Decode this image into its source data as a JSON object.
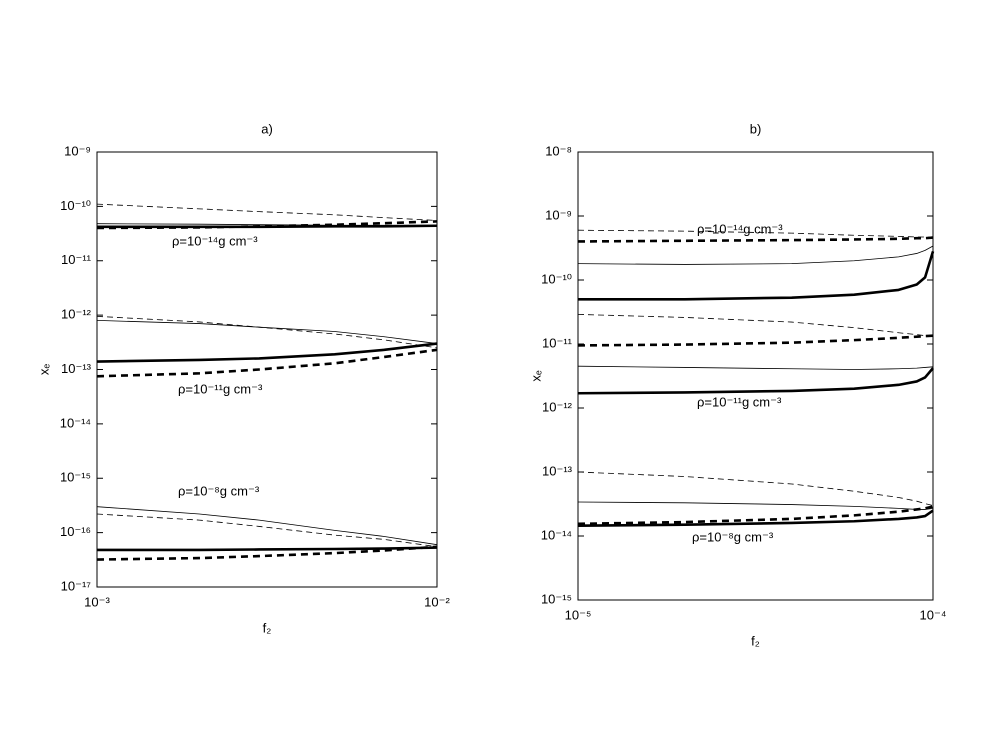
{
  "chart_data": [
    {
      "type": "line",
      "title": "a)",
      "x_label": "f₂",
      "y_label": "xₑ",
      "log_x": true,
      "log_y": true,
      "xlim": [
        0.001,
        0.01
      ],
      "ylim": [
        1e-17,
        1e-09
      ],
      "xticks": [
        {
          "value": 0.001,
          "label": "10⁻³"
        },
        {
          "value": 0.01,
          "label": "10⁻²"
        }
      ],
      "yticks": [
        {
          "value": 1e-17,
          "label": "10⁻¹⁷"
        },
        {
          "value": 1e-16,
          "label": "10⁻¹⁶"
        },
        {
          "value": 1e-15,
          "label": "10⁻¹⁵"
        },
        {
          "value": 1e-14,
          "label": "10⁻¹⁴"
        },
        {
          "value": 1e-13,
          "label": "10⁻¹³"
        },
        {
          "value": 1e-12,
          "label": "10⁻¹²"
        },
        {
          "value": 1e-11,
          "label": "10⁻¹¹"
        },
        {
          "value": 1e-10,
          "label": "10⁻¹⁰"
        },
        {
          "value": 1e-09,
          "label": "10⁻⁹"
        }
      ],
      "annotations": [
        "ρ=10⁻¹⁴g cm⁻³",
        "ρ=10⁻¹¹g cm⁻³",
        "ρ=10⁻⁸g cm⁻³"
      ],
      "x": [
        0.001,
        0.002,
        0.003,
        0.005,
        0.007,
        0.01
      ],
      "series": [
        {
          "color": "#000000",
          "width": 0.8,
          "dashed": true,
          "values": [
            1.1e-10,
            9e-11,
            8e-11,
            7e-11,
            6.2e-11,
            5.5e-11
          ]
        },
        {
          "color": "#000000",
          "width": 0.8,
          "dashed": false,
          "values": [
            4.8e-11,
            4.7e-11,
            4.6e-11,
            4.5e-11,
            4.5e-11,
            4.5e-11
          ]
        },
        {
          "color": "#000000",
          "width": 2.6,
          "dashed": false,
          "values": [
            4.2e-11,
            4.2e-11,
            4.2e-11,
            4.3e-11,
            4.3e-11,
            4.4e-11
          ]
        },
        {
          "color": "#000000",
          "width": 2.6,
          "dashed": true,
          "values": [
            4e-11,
            4.1e-11,
            4.3e-11,
            4.6e-11,
            4.9e-11,
            5.3e-11
          ]
        },
        {
          "color": "#000000",
          "width": 0.8,
          "dashed": true,
          "values": [
            9.5e-13,
            7.5e-13,
            6e-13,
            4.5e-13,
            3.5e-13,
            2.5e-13
          ]
        },
        {
          "color": "#000000",
          "width": 0.8,
          "dashed": false,
          "values": [
            8e-13,
            7e-13,
            6e-13,
            5e-13,
            4e-13,
            3e-13
          ]
        },
        {
          "color": "#000000",
          "width": 2.6,
          "dashed": false,
          "values": [
            1.4e-13,
            1.5e-13,
            1.6e-13,
            1.9e-13,
            2.3e-13,
            3e-13
          ]
        },
        {
          "color": "#000000",
          "width": 2.6,
          "dashed": true,
          "values": [
            7.5e-14,
            8.5e-14,
            1e-13,
            1.3e-13,
            1.7e-13,
            2.3e-13
          ]
        },
        {
          "color": "#000000",
          "width": 0.8,
          "dashed": false,
          "values": [
            3e-16,
            2.2e-16,
            1.7e-16,
            1.1e-16,
            8.5e-17,
            6e-17
          ]
        },
        {
          "color": "#000000",
          "width": 0.8,
          "dashed": true,
          "values": [
            2.2e-16,
            1.7e-16,
            1.3e-16,
            9e-17,
            7.5e-17,
            5.5e-17
          ]
        },
        {
          "color": "#000000",
          "width": 2.6,
          "dashed": false,
          "values": [
            4.8e-17,
            4.8e-17,
            4.9e-17,
            5e-17,
            5.1e-17,
            5.3e-17
          ]
        },
        {
          "color": "#000000",
          "width": 2.6,
          "dashed": true,
          "values": [
            3.2e-17,
            3.4e-17,
            3.7e-17,
            4.2e-17,
            4.7e-17,
            5.5e-17
          ]
        }
      ]
    },
    {
      "type": "line",
      "title": "b)",
      "x_label": "f₂",
      "y_label": "xₑ",
      "log_x": true,
      "log_y": true,
      "xlim": [
        1e-05,
        0.0001
      ],
      "ylim": [
        1e-15,
        1e-08
      ],
      "xticks": [
        {
          "value": 1e-05,
          "label": "10⁻⁵"
        },
        {
          "value": 0.0001,
          "label": "10⁻⁴"
        }
      ],
      "yticks": [
        {
          "value": 1e-15,
          "label": "10⁻¹⁵"
        },
        {
          "value": 1e-14,
          "label": "10⁻¹⁴"
        },
        {
          "value": 1e-13,
          "label": "10⁻¹³"
        },
        {
          "value": 1e-12,
          "label": "10⁻¹²"
        },
        {
          "value": 1e-11,
          "label": "10⁻¹¹"
        },
        {
          "value": 1e-10,
          "label": "10⁻¹⁰"
        },
        {
          "value": 1e-09,
          "label": "10⁻⁹"
        },
        {
          "value": 1e-08,
          "label": "10⁻⁸"
        }
      ],
      "annotations": [
        "ρ=10⁻¹⁴g cm⁻³",
        "ρ=10⁻¹¹g cm⁻³",
        "ρ=10⁻⁸g cm⁻³"
      ],
      "x": [
        1e-05,
        2e-05,
        4e-05,
        6e-05,
        8e-05,
        9e-05,
        9.5e-05,
        0.0001
      ],
      "series": [
        {
          "color": "#000000",
          "width": 0.8,
          "dashed": true,
          "values": [
            6e-10,
            5.8e-10,
            5.4e-10,
            5e-10,
            4.8e-10,
            4.7e-10,
            4.7e-10,
            4.6e-10
          ]
        },
        {
          "color": "#000000",
          "width": 2.6,
          "dashed": true,
          "values": [
            4e-10,
            4.1e-10,
            4.2e-10,
            4.3e-10,
            4.4e-10,
            4.5e-10,
            4.5e-10,
            4.6e-10
          ]
        },
        {
          "color": "#000000",
          "width": 0.8,
          "dashed": false,
          "values": [
            1.8e-10,
            1.75e-10,
            1.8e-10,
            2e-10,
            2.3e-10,
            2.6e-10,
            2.9e-10,
            3.4e-10
          ]
        },
        {
          "color": "#000000",
          "width": 2.6,
          "dashed": false,
          "values": [
            5e-11,
            5e-11,
            5.3e-11,
            5.9e-11,
            7e-11,
            8.5e-11,
            1.1e-10,
            2.8e-10
          ]
        },
        {
          "color": "#000000",
          "width": 0.8,
          "dashed": true,
          "values": [
            2.9e-11,
            2.6e-11,
            2.2e-11,
            1.8e-11,
            1.5e-11,
            1.4e-11,
            1.35e-11,
            1.3e-11
          ]
        },
        {
          "color": "#000000",
          "width": 2.6,
          "dashed": true,
          "values": [
            9.5e-12,
            9.8e-12,
            1.05e-11,
            1.15e-11,
            1.25e-11,
            1.3e-11,
            1.33e-11,
            1.35e-11
          ]
        },
        {
          "color": "#000000",
          "width": 0.8,
          "dashed": false,
          "values": [
            4.5e-12,
            4.3e-12,
            4.1e-12,
            4e-12,
            4.1e-12,
            4.2e-12,
            4.3e-12,
            4.4e-12
          ]
        },
        {
          "color": "#000000",
          "width": 2.6,
          "dashed": false,
          "values": [
            1.7e-12,
            1.75e-12,
            1.85e-12,
            2e-12,
            2.3e-12,
            2.6e-12,
            3e-12,
            4.2e-12
          ]
        },
        {
          "color": "#000000",
          "width": 0.8,
          "dashed": true,
          "values": [
            1e-13,
            8.5e-14,
            6.5e-14,
            5e-14,
            4e-14,
            3.5e-14,
            3.2e-14,
            3e-14
          ]
        },
        {
          "color": "#000000",
          "width": 0.8,
          "dashed": false,
          "values": [
            3.4e-14,
            3.3e-14,
            3.1e-14,
            2.9e-14,
            2.7e-14,
            2.6e-14,
            2.6e-14,
            2.7e-14
          ]
        },
        {
          "color": "#000000",
          "width": 2.6,
          "dashed": true,
          "values": [
            1.55e-14,
            1.65e-14,
            1.85e-14,
            2.1e-14,
            2.4e-14,
            2.6e-14,
            2.7e-14,
            2.9e-14
          ]
        },
        {
          "color": "#000000",
          "width": 2.6,
          "dashed": false,
          "values": [
            1.45e-14,
            1.5e-14,
            1.6e-14,
            1.7e-14,
            1.85e-14,
            1.95e-14,
            2.05e-14,
            2.5e-14
          ]
        }
      ]
    }
  ]
}
